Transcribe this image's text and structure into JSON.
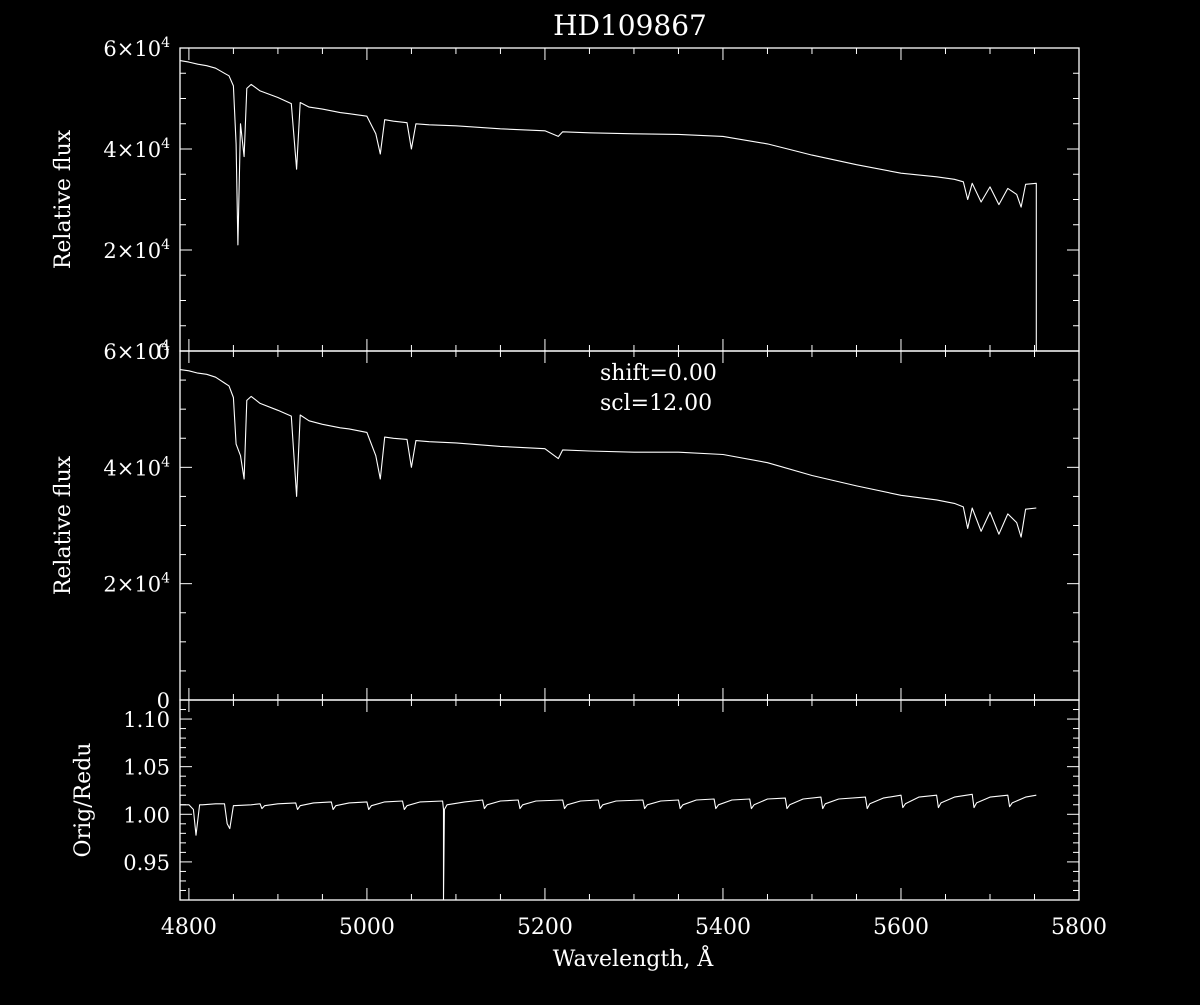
{
  "title": "HD109867",
  "colors": {
    "background": "#000000",
    "foreground": "#ffffff"
  },
  "chart_data": [
    {
      "type": "line",
      "panel": "top",
      "ylabel": "Relative flux",
      "xlim": [
        4790,
        5800
      ],
      "ylim": [
        0,
        60000
      ],
      "yticks": [
        {
          "v": 0,
          "base": "0",
          "exp": ""
        },
        {
          "v": 20000,
          "base": "2×10",
          "exp": "4"
        },
        {
          "v": 40000,
          "base": "4×10",
          "exp": "4"
        },
        {
          "v": 60000,
          "base": "6×10",
          "exp": "4"
        }
      ],
      "series": [
        {
          "x": [
            4790,
            4800,
            4810,
            4820,
            4830,
            4840,
            4845,
            4850,
            4853,
            4855,
            4858,
            4862,
            4865,
            4870,
            4880,
            4900,
            4915,
            4921,
            4925,
            4935,
            4950,
            4970,
            4980,
            5000,
            5010,
            5015,
            5020,
            5030,
            5045,
            5050,
            5055,
            5070,
            5100,
            5150,
            5200,
            5215,
            5220,
            5250,
            5300,
            5350,
            5400,
            5450,
            5500,
            5550,
            5600,
            5640,
            5660,
            5670,
            5675,
            5680,
            5690,
            5700,
            5710,
            5720,
            5730,
            5735,
            5740,
            5752,
            5752
          ],
          "y": [
            57500,
            57200,
            56800,
            56500,
            56000,
            55000,
            54500,
            52500,
            41000,
            21000,
            45000,
            38500,
            52000,
            52800,
            51500,
            50200,
            49000,
            36000,
            49200,
            48300,
            47900,
            47200,
            47000,
            46500,
            43000,
            39000,
            45800,
            45500,
            45200,
            40000,
            45000,
            44800,
            44600,
            44000,
            43600,
            42500,
            43400,
            43200,
            43000,
            42900,
            42500,
            41000,
            38800,
            36900,
            35200,
            34500,
            34000,
            33500,
            30000,
            33200,
            29500,
            32500,
            29000,
            32200,
            31000,
            28500,
            33000,
            33200,
            0
          ]
        }
      ]
    },
    {
      "type": "line",
      "panel": "middle",
      "ylabel": "Relative flux",
      "xlim": [
        4790,
        5800
      ],
      "ylim": [
        0,
        60000
      ],
      "annotations": [
        "shift=0.00",
        "scl=12.00"
      ],
      "yticks": [
        {
          "v": 0,
          "base": "0",
          "exp": ""
        },
        {
          "v": 20000,
          "base": "2×10",
          "exp": "4"
        },
        {
          "v": 40000,
          "base": "4×10",
          "exp": "4"
        },
        {
          "v": 60000,
          "base": "6×10",
          "exp": "4"
        }
      ],
      "series": [
        {
          "x": [
            4790,
            4800,
            4810,
            4820,
            4830,
            4840,
            4845,
            4850,
            4853,
            4858,
            4862,
            4865,
            4870,
            4880,
            4900,
            4915,
            4921,
            4925,
            4935,
            4950,
            4970,
            4980,
            5000,
            5010,
            5015,
            5020,
            5030,
            5045,
            5050,
            5055,
            5070,
            5100,
            5150,
            5200,
            5215,
            5220,
            5250,
            5300,
            5350,
            5400,
            5450,
            5500,
            5550,
            5600,
            5640,
            5660,
            5670,
            5675,
            5680,
            5690,
            5700,
            5710,
            5720,
            5730,
            5735,
            5740,
            5752
          ],
          "y": [
            56800,
            56600,
            56200,
            56000,
            55500,
            54500,
            54000,
            52000,
            44000,
            42000,
            38000,
            51500,
            52200,
            51000,
            49800,
            48800,
            35000,
            49000,
            48000,
            47400,
            46800,
            46600,
            46000,
            42000,
            38000,
            45200,
            45000,
            44800,
            40000,
            44600,
            44400,
            44200,
            43600,
            43200,
            41500,
            43000,
            42800,
            42600,
            42600,
            42200,
            40800,
            38600,
            36800,
            35200,
            34400,
            33800,
            33200,
            29500,
            33000,
            29000,
            32300,
            28500,
            32000,
            30500,
            28000,
            32800,
            33000
          ]
        }
      ]
    },
    {
      "type": "line",
      "panel": "bottom",
      "xlabel": "Wavelength, Å",
      "ylabel": "Orig/Redu",
      "xlim": [
        4790,
        5800
      ],
      "ylim": [
        0.91,
        1.12
      ],
      "xticks": [
        "4800",
        "5000",
        "5200",
        "5400",
        "5600",
        "5800"
      ],
      "yticks": [
        {
          "v": 0.95,
          "base": "0.95",
          "exp": ""
        },
        {
          "v": 1.0,
          "base": "1.00",
          "exp": ""
        },
        {
          "v": 1.05,
          "base": "1.05",
          "exp": ""
        },
        {
          "v": 1.1,
          "base": "1.10",
          "exp": ""
        }
      ],
      "series": [
        {
          "x": [
            4790,
            4800,
            4805,
            4808,
            4812,
            4815,
            4830,
            4840,
            4843,
            4846,
            4850,
            4870,
            4880,
            4882,
            4885,
            4900,
            4920,
            4922,
            4925,
            4940,
            4960,
            4962,
            4965,
            4980,
            5000,
            5002,
            5005,
            5020,
            5040,
            5042,
            5045,
            5060,
            5085,
            5086,
            5086,
            5087,
            5090,
            5110,
            5130,
            5132,
            5135,
            5150,
            5170,
            5172,
            5175,
            5190,
            5220,
            5222,
            5225,
            5240,
            5260,
            5262,
            5265,
            5280,
            5310,
            5312,
            5315,
            5330,
            5350,
            5352,
            5355,
            5370,
            5390,
            5392,
            5395,
            5410,
            5430,
            5432,
            5435,
            5450,
            5470,
            5472,
            5475,
            5490,
            5510,
            5512,
            5515,
            5530,
            5560,
            5562,
            5565,
            5580,
            5600,
            5602,
            5605,
            5620,
            5640,
            5642,
            5645,
            5660,
            5680,
            5682,
            5685,
            5700,
            5720,
            5722,
            5725,
            5740,
            5752
          ],
          "y": [
            1.01,
            1.01,
            1.005,
            0.978,
            1.01,
            1.01,
            1.011,
            1.011,
            0.99,
            0.985,
            1.009,
            1.01,
            1.011,
            1.006,
            1.009,
            1.011,
            1.012,
            1.005,
            1.009,
            1.012,
            1.013,
            1.005,
            1.009,
            1.012,
            1.013,
            1.005,
            1.009,
            1.013,
            1.014,
            1.005,
            1.009,
            1.013,
            1.014,
            1.005,
            0.91,
            1.005,
            1.01,
            1.013,
            1.015,
            1.006,
            1.01,
            1.014,
            1.015,
            1.006,
            1.01,
            1.014,
            1.015,
            1.006,
            1.01,
            1.014,
            1.015,
            1.006,
            1.01,
            1.014,
            1.015,
            1.006,
            1.01,
            1.014,
            1.015,
            1.006,
            1.01,
            1.015,
            1.016,
            1.006,
            1.01,
            1.015,
            1.016,
            1.006,
            1.01,
            1.016,
            1.017,
            1.006,
            1.01,
            1.016,
            1.018,
            1.006,
            1.011,
            1.016,
            1.018,
            1.006,
            1.011,
            1.017,
            1.02,
            1.007,
            1.011,
            1.018,
            1.02,
            1.007,
            1.012,
            1.018,
            1.021,
            1.007,
            1.012,
            1.018,
            1.02,
            1.008,
            1.012,
            1.018,
            1.02
          ]
        }
      ]
    }
  ]
}
